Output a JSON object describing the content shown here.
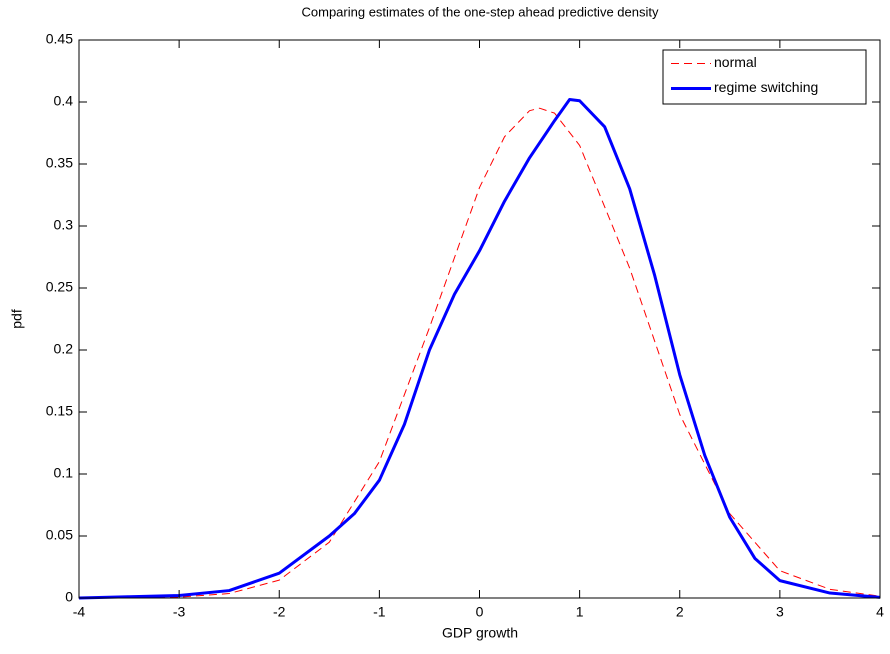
{
  "chart_data": {
    "type": "line",
    "title": "Comparing estimates of the one-step ahead predictive density",
    "x_label": "GDP growth",
    "y_label": "pdf",
    "xlim": [
      -4,
      4
    ],
    "ylim": [
      0,
      0.45
    ],
    "xticks": [
      -4,
      -3,
      -2,
      -1,
      0,
      1,
      2,
      3,
      4
    ],
    "yticks": [
      0,
      0.05,
      0.1,
      0.15,
      0.2,
      0.25,
      0.3,
      0.35,
      0.4,
      0.45
    ],
    "grid": false,
    "legend": "upper right",
    "series": [
      {
        "name": "normal",
        "color": "#ff0000",
        "style": "dashed",
        "x": [
          -4,
          -3.5,
          -3,
          -2.5,
          -2,
          -1.5,
          -1,
          -0.5,
          0,
          0.25,
          0.5,
          0.6,
          0.75,
          1,
          1.5,
          2,
          2.5,
          3,
          3.5,
          4
        ],
        "values": [
          0,
          0.0001,
          0.0007,
          0.0036,
          0.0144,
          0.045,
          0.11,
          0.218,
          0.331,
          0.372,
          0.393,
          0.395,
          0.391,
          0.365,
          0.266,
          0.148,
          0.068,
          0.022,
          0.007,
          0.0014
        ]
      },
      {
        "name": "regime switching",
        "color": "#0000ff",
        "style": "solid",
        "x": [
          -4,
          -3.5,
          -3,
          -2.5,
          -2,
          -1.5,
          -1.25,
          -1,
          -0.75,
          -0.5,
          -0.25,
          0,
          0.25,
          0.5,
          0.75,
          0.9,
          1,
          1.25,
          1.5,
          1.75,
          2,
          2.25,
          2.5,
          2.75,
          3,
          3.5,
          4
        ],
        "values": [
          0,
          0.001,
          0.002,
          0.006,
          0.02,
          0.05,
          0.068,
          0.095,
          0.14,
          0.2,
          0.245,
          0.28,
          0.32,
          0.355,
          0.385,
          0.402,
          0.401,
          0.38,
          0.33,
          0.26,
          0.18,
          0.115,
          0.065,
          0.032,
          0.014,
          0.004,
          0.0005
        ]
      }
    ]
  }
}
